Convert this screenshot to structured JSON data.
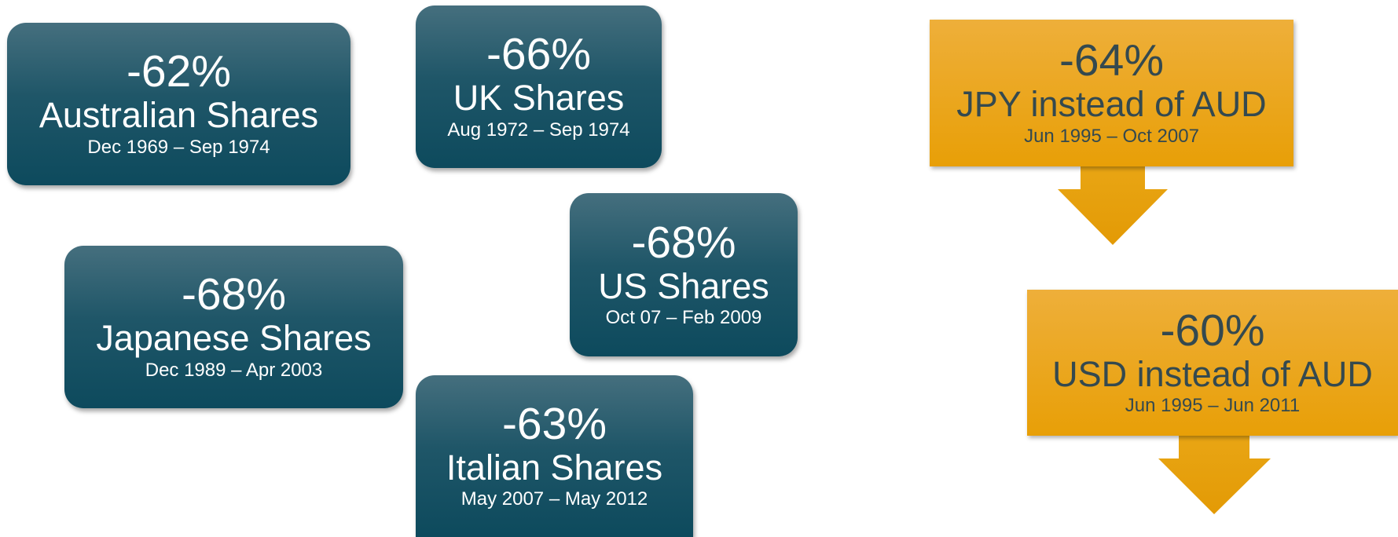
{
  "teal_boxes": [
    {
      "pct": "-62%",
      "name": "Australian Shares",
      "dates": "Dec 1969 – Sep 1974"
    },
    {
      "pct": "-66%",
      "name": "UK Shares",
      "dates": "Aug 1972 – Sep 1974"
    },
    {
      "pct": "-68%",
      "name": "Japanese Shares",
      "dates": "Dec 1989 – Apr 2003"
    },
    {
      "pct": "-68%",
      "name": "US Shares",
      "dates": "Oct 07 – Feb 2009"
    },
    {
      "pct": "-63%",
      "name": "Italian Shares",
      "dates": "May 2007 – May 2012"
    }
  ],
  "orange_boxes": [
    {
      "pct": "-64%",
      "name": "JPY instead of AUD",
      "dates": "Jun 1995 – Oct 2007"
    },
    {
      "pct": "-60%",
      "name": "USD instead of AUD",
      "dates": "Jun 1995 – Jun 2011"
    }
  ]
}
